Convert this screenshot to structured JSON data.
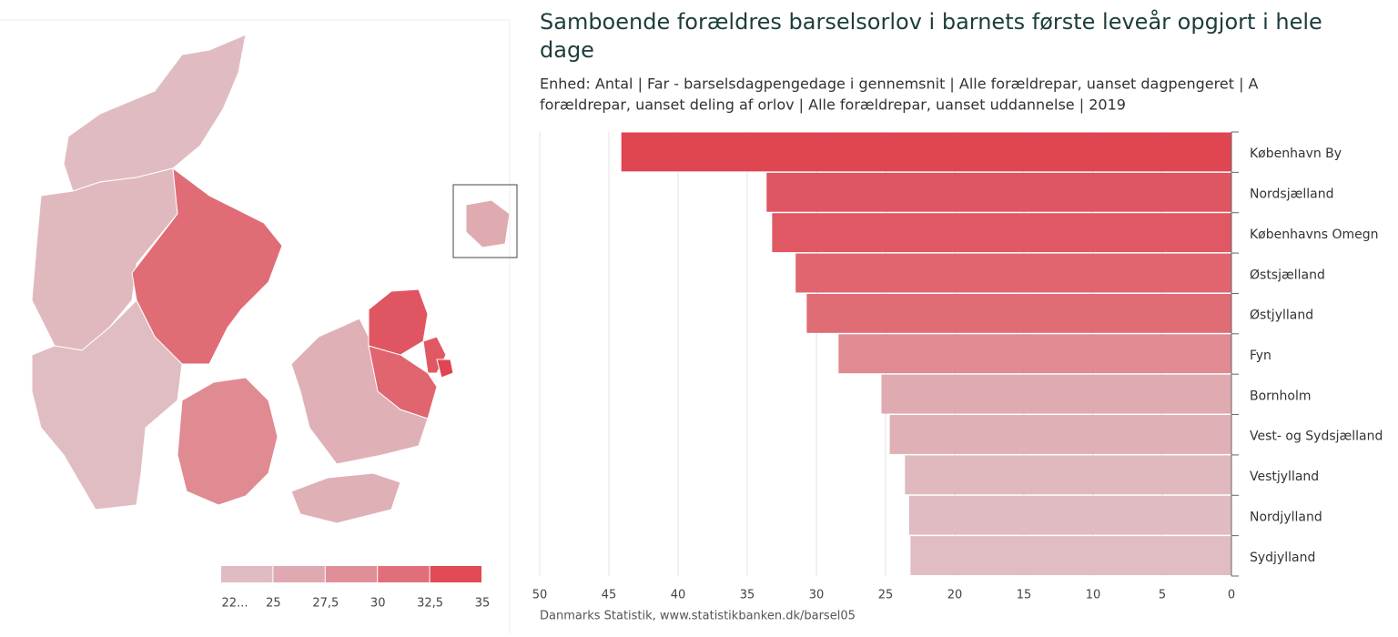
{
  "chart_data": {
    "type": "barh",
    "title_lines": [
      "Samboende forældres barselsorlov i barnets første leveår opgjort i hele",
      "dage"
    ],
    "subtitle_lines": [
      "Enhed: Antal | Far - barselsdagpengedage i gennemsnit | Alle forældrepar, uanset dagpengeret | A",
      "forældrepar, uanset deling af orlov | Alle forældrepar, uanset uddannelse | 2019"
    ],
    "source": "Danmarks Statistik, www.statistikbanken.dk/barsel05",
    "categories": [
      "København By",
      "Nordsjælland",
      "Københavns Omegn",
      "Østsjælland",
      "Østjylland",
      "Fyn",
      "Bornholm",
      "Vest- og Sydsjælland",
      "Vestjylland",
      "Nordjylland",
      "Sydjylland"
    ],
    "values": [
      44.1,
      33.6,
      33.2,
      31.5,
      30.7,
      28.4,
      25.3,
      24.7,
      23.6,
      23.3,
      23.2
    ],
    "colors": [
      "#e04552",
      "#e05562",
      "#e05864",
      "#e0656f",
      "#e06c76",
      "#e08a92",
      "#e0aab1",
      "#e0b0b7",
      "#e0b9bf",
      "#e0bcc2",
      "#e0bdc3"
    ],
    "xlim": [
      50,
      0
    ],
    "xticks": [
      50,
      45,
      40,
      35,
      30,
      25,
      20,
      15,
      10,
      5,
      0
    ],
    "grid": true,
    "legend": {
      "lim": [
        22.5,
        35
      ],
      "ticks": [
        {
          "value": 22.5,
          "label": "22..."
        },
        25,
        {
          "value": 27.5,
          "label": "27,5"
        },
        30,
        {
          "value": 32.5,
          "label": "32,5"
        },
        35
      ],
      "colors": [
        "#e0bcc2",
        "#e0a8b0",
        "#e08f98",
        "#e06f7a",
        "#e04a57"
      ]
    }
  }
}
